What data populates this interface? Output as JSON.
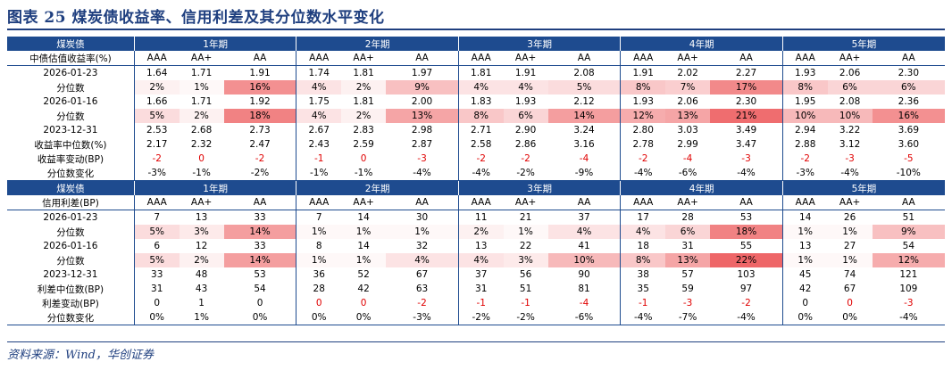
{
  "title": "图表 25   煤炭债收益率、信用利差及其分位数水平变化",
  "source": "资料来源：Wind，华创证券",
  "colors": {
    "header": "#1e4b8f",
    "negative": "#e00000",
    "heat_low": "#ffffff",
    "heat_high": "#ee6668"
  },
  "sections": [
    {
      "header_label": "煤炭债",
      "groups": [
        "1年期",
        "2年期",
        "3年期",
        "4年期",
        "5年期"
      ],
      "subheader_label": "中债估值收益率(%)",
      "columns": [
        "AAA",
        "AA+",
        "AA"
      ],
      "rows": [
        {
          "label": "2026-01-23",
          "values": [
            "1.64",
            "1.71",
            "1.91",
            "1.74",
            "1.81",
            "1.97",
            "1.81",
            "1.91",
            "2.08",
            "1.91",
            "2.02",
            "2.27",
            "1.93",
            "2.06",
            "2.30"
          ]
        },
        {
          "label": "分位数",
          "heat": true,
          "values": [
            "2%",
            "1%",
            "16%",
            "4%",
            "2%",
            "9%",
            "4%",
            "4%",
            "5%",
            "8%",
            "7%",
            "17%",
            "8%",
            "6%",
            "6%"
          ]
        },
        {
          "label": "2026-01-16",
          "values": [
            "1.66",
            "1.71",
            "1.92",
            "1.75",
            "1.81",
            "2.00",
            "1.83",
            "1.93",
            "2.12",
            "1.93",
            "2.06",
            "2.30",
            "1.95",
            "2.08",
            "2.36"
          ]
        },
        {
          "label": "分位数",
          "heat": true,
          "values": [
            "5%",
            "2%",
            "18%",
            "4%",
            "2%",
            "13%",
            "8%",
            "6%",
            "14%",
            "12%",
            "13%",
            "21%",
            "10%",
            "10%",
            "16%"
          ]
        },
        {
          "label": "2023-12-31",
          "values": [
            "2.53",
            "2.68",
            "2.73",
            "2.67",
            "2.83",
            "2.98",
            "2.71",
            "2.90",
            "3.24",
            "2.80",
            "3.03",
            "3.49",
            "2.94",
            "3.22",
            "3.69"
          ]
        },
        {
          "label": "收益率中位数(%)",
          "values": [
            "2.17",
            "2.32",
            "2.47",
            "2.43",
            "2.59",
            "2.87",
            "2.58",
            "2.86",
            "3.16",
            "2.78",
            "2.99",
            "3.47",
            "2.88",
            "3.12",
            "3.60"
          ]
        },
        {
          "label": "收益率变动(BP)",
          "red_neg": true,
          "values": [
            "-2",
            "0",
            "-2",
            "-1",
            "0",
            "-3",
            "-2",
            "-2",
            "-4",
            "-2",
            "-4",
            "-3",
            "-2",
            "-3",
            "-5"
          ]
        },
        {
          "label": "分位数变化",
          "values": [
            "-3%",
            "-1%",
            "-2%",
            "-1%",
            "-1%",
            "-4%",
            "-4%",
            "-2%",
            "-9%",
            "-4%",
            "-6%",
            "-4%",
            "-3%",
            "-4%",
            "-10%"
          ]
        }
      ]
    },
    {
      "header_label": "煤炭债",
      "groups": [
        "1年期",
        "2年期",
        "3年期",
        "4年期",
        "5年期"
      ],
      "subheader_label": "信用利差(BP)",
      "columns": [
        "AAA",
        "AA+",
        "AA"
      ],
      "rows": [
        {
          "label": "2026-01-23",
          "values": [
            "7",
            "13",
            "33",
            "7",
            "14",
            "30",
            "11",
            "21",
            "37",
            "17",
            "28",
            "53",
            "14",
            "26",
            "51"
          ]
        },
        {
          "label": "分位数",
          "heat": true,
          "values": [
            "5%",
            "3%",
            "14%",
            "1%",
            "1%",
            "1%",
            "2%",
            "1%",
            "4%",
            "4%",
            "6%",
            "18%",
            "1%",
            "1%",
            "9%"
          ]
        },
        {
          "label": "2026-01-16",
          "values": [
            "6",
            "12",
            "33",
            "8",
            "14",
            "32",
            "13",
            "22",
            "41",
            "18",
            "31",
            "55",
            "13",
            "27",
            "54"
          ]
        },
        {
          "label": "分位数",
          "heat": true,
          "values": [
            "5%",
            "2%",
            "14%",
            "1%",
            "1%",
            "4%",
            "4%",
            "3%",
            "10%",
            "8%",
            "13%",
            "22%",
            "1%",
            "1%",
            "12%"
          ]
        },
        {
          "label": "2023-12-31",
          "values": [
            "33",
            "48",
            "53",
            "36",
            "52",
            "67",
            "37",
            "56",
            "90",
            "38",
            "57",
            "103",
            "45",
            "74",
            "121"
          ]
        },
        {
          "label": "利差中位数(BP)",
          "values": [
            "31",
            "43",
            "54",
            "28",
            "42",
            "63",
            "31",
            "51",
            "81",
            "35",
            "59",
            "97",
            "42",
            "67",
            "109"
          ]
        },
        {
          "label": "利差变动(BP)",
          "red_neg": true,
          "values": [
            "0",
            "1",
            "0",
            "0",
            "0",
            "-2",
            "-1",
            "-1",
            "-4",
            "-1",
            "-3",
            "-2",
            "0",
            "0",
            "-3"
          ]
        },
        {
          "label": "分位数变化",
          "values": [
            "0%",
            "1%",
            "0%",
            "0%",
            "0%",
            "-3%",
            "-2%",
            "-2%",
            "-6%",
            "-4%",
            "-7%",
            "-4%",
            "0%",
            "0%",
            "-4%"
          ]
        }
      ]
    }
  ]
}
